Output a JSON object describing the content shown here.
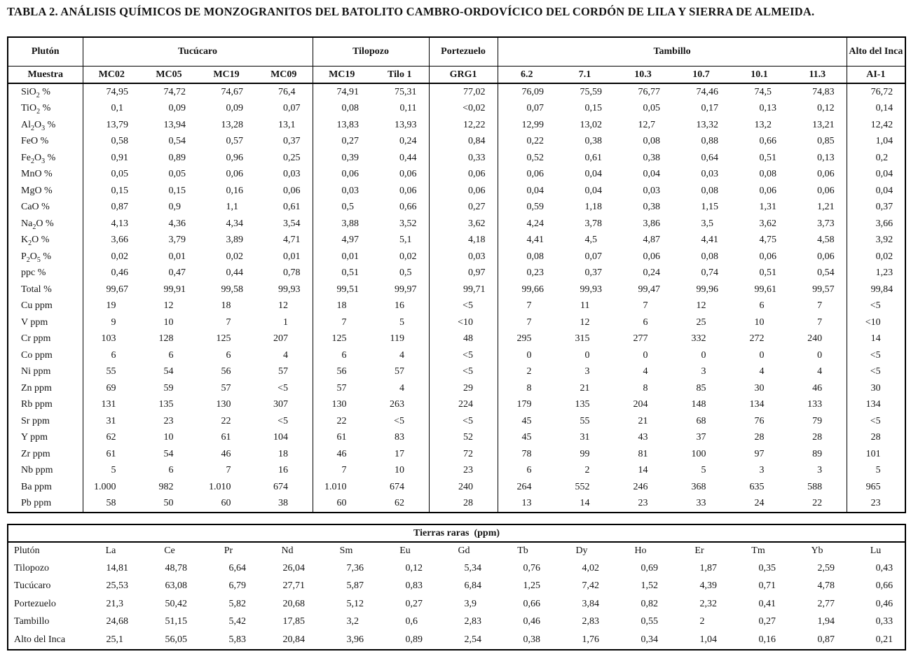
{
  "title": "TABLA 2. ANÁLISIS QUÍMICOS DE MONZOGRANITOS DEL BATOLITO CAMBRO-ORDOVÍCICO DEL CORDÓN DE LILA Y SIERRA DE ALMEIDA.",
  "main_table": {
    "pluton_header": "Plutón",
    "muestra_header": "Muestra",
    "groups": [
      {
        "label": "Tucúcaro",
        "span": 4
      },
      {
        "label": "Tilopozo",
        "span": 2
      },
      {
        "label": "Portezuelo",
        "span": 1
      },
      {
        "label": "Tambillo",
        "span": 6
      },
      {
        "label": "Alto del Inca",
        "span": 1
      }
    ],
    "samples": [
      "MC02",
      "MC05",
      "MC19",
      "MC09",
      "MC19",
      "Tilo 1",
      "GRG1",
      "6.2",
      "7.1",
      "10.3",
      "10.7",
      "10.1",
      "11.3",
      "AI-1"
    ],
    "rows": [
      {
        "label": "SiO₂ %",
        "values": [
          "74,95",
          "74,72",
          "74,67",
          "76,4",
          "74,91",
          "75,31",
          "77,02",
          "76,09",
          "75,59",
          "76,77",
          "74,46",
          "74,5",
          "74,83",
          "76,72"
        ]
      },
      {
        "label": "TiO₂ %",
        "values": [
          "0,1",
          "0,09",
          "0,09",
          "0,07",
          "0,08",
          "0,11",
          "<0,02",
          "0,07",
          "0,15",
          "0,05",
          "0,17",
          "0,13",
          "0,12",
          "0,14"
        ]
      },
      {
        "label": "Al₂O₃ %",
        "values": [
          "13,79",
          "13,94",
          "13,28",
          "13,1",
          "13,83",
          "13,93",
          "12,22",
          "12,99",
          "13,02",
          "12,7",
          "13,32",
          "13,2",
          "13,21",
          "12,42"
        ]
      },
      {
        "label": "FeO %",
        "values": [
          "0,58",
          "0,54",
          "0,57",
          "0,37",
          "0,27",
          "0,24",
          "0,84",
          "0,22",
          "0,38",
          "0,08",
          "0,88",
          "0,66",
          "0,85",
          "1,04"
        ]
      },
      {
        "label": "Fe₂O₃ %",
        "values": [
          "0,91",
          "0,89",
          "0,96",
          "0,25",
          "0,39",
          "0,44",
          "0,33",
          "0,52",
          "0,61",
          "0,38",
          "0,64",
          "0,51",
          "0,13",
          "0,2"
        ]
      },
      {
        "label": "MnO %",
        "values": [
          "0,05",
          "0,05",
          "0,06",
          "0,03",
          "0,06",
          "0,06",
          "0,06",
          "0,06",
          "0,04",
          "0,04",
          "0,03",
          "0,08",
          "0,06",
          "0,04"
        ]
      },
      {
        "label": "MgO %",
        "values": [
          "0,15",
          "0,15",
          "0,16",
          "0,06",
          "0,03",
          "0,06",
          "0,06",
          "0,04",
          "0,04",
          "0,03",
          "0,08",
          "0,06",
          "0,06",
          "0,04"
        ]
      },
      {
        "label": "CaO %",
        "values": [
          "0,87",
          "0,9",
          "1,1",
          "0,61",
          "0,5",
          "0,66",
          "0,27",
          "0,59",
          "1,18",
          "0,38",
          "1,15",
          "1,31",
          "1,21",
          "0,37"
        ]
      },
      {
        "label": "Na₂O %",
        "values": [
          "4,13",
          "4,36",
          "4,34",
          "3,54",
          "3,88",
          "3,52",
          "3,62",
          "4,24",
          "3,78",
          "3,86",
          "3,5",
          "3,62",
          "3,73",
          "3,66"
        ]
      },
      {
        "label": "K₂O %",
        "values": [
          "3,66",
          "3,79",
          "3,89",
          "4,71",
          "4,97",
          "5,1",
          "4,18",
          "4,41",
          "4,5",
          "4,87",
          "4,41",
          "4,75",
          "4,58",
          "3,92"
        ]
      },
      {
        "label": "P₂O₅ %",
        "values": [
          "0,02",
          "0,01",
          "0,02",
          "0,01",
          "0,01",
          "0,02",
          "0,03",
          "0,08",
          "0,07",
          "0,06",
          "0,08",
          "0,06",
          "0,06",
          "0,02"
        ]
      },
      {
        "label": "ppc %",
        "values": [
          "0,46",
          "0,47",
          "0,44",
          "0,78",
          "0,51",
          "0,5",
          "0,97",
          "0,23",
          "0,37",
          "0,24",
          "0,74",
          "0,51",
          "0,54",
          "1,23"
        ]
      },
      {
        "label": "Total %",
        "values": [
          "99,67",
          "99,91",
          "99,58",
          "99,93",
          "99,51",
          "99,97",
          "99,71",
          "99,66",
          "99,93",
          "99,47",
          "99,96",
          "99,61",
          "99,57",
          "99,84"
        ]
      },
      {
        "label": "Cu ppm",
        "values": [
          "19",
          "12",
          "18",
          "12",
          "18",
          "16",
          "<5",
          "7",
          "11",
          "7",
          "12",
          "6",
          "7",
          "<5"
        ]
      },
      {
        "label": "V ppm",
        "values": [
          "9",
          "10",
          "7",
          "1",
          "7",
          "5",
          "<10",
          "7",
          "12",
          "6",
          "25",
          "10",
          "7",
          "<10"
        ]
      },
      {
        "label": "Cr ppm",
        "values": [
          "103",
          "128",
          "125",
          "207",
          "125",
          "119",
          "48",
          "295",
          "315",
          "277",
          "332",
          "272",
          "240",
          "14"
        ]
      },
      {
        "label": "Co ppm",
        "values": [
          "6",
          "6",
          "6",
          "4",
          "6",
          "4",
          "<5",
          "0",
          "0",
          "0",
          "0",
          "0",
          "0",
          "<5"
        ]
      },
      {
        "label": "Ni ppm",
        "values": [
          "55",
          "54",
          "56",
          "57",
          "56",
          "57",
          "<5",
          "2",
          "3",
          "4",
          "3",
          "4",
          "4",
          "<5"
        ]
      },
      {
        "label": "Zn ppm",
        "values": [
          "69",
          "59",
          "57",
          "<5",
          "57",
          "4",
          "29",
          "8",
          "21",
          "8",
          "85",
          "30",
          "46",
          "30"
        ]
      },
      {
        "label": "Rb ppm",
        "values": [
          "131",
          "135",
          "130",
          "307",
          "130",
          "263",
          "224",
          "179",
          "135",
          "204",
          "148",
          "134",
          "133",
          "134"
        ]
      },
      {
        "label": "Sr ppm",
        "values": [
          "31",
          "23",
          "22",
          "<5",
          "22",
          "<5",
          "<5",
          "45",
          "55",
          "21",
          "68",
          "76",
          "79",
          "<5"
        ]
      },
      {
        "label": "Y ppm",
        "values": [
          "62",
          "10",
          "61",
          "104",
          "61",
          "83",
          "52",
          "45",
          "31",
          "43",
          "37",
          "28",
          "28",
          "28"
        ]
      },
      {
        "label": "Zr ppm",
        "values": [
          "61",
          "54",
          "46",
          "18",
          "46",
          "17",
          "72",
          "78",
          "99",
          "81",
          "100",
          "97",
          "89",
          "101"
        ]
      },
      {
        "label": "Nb ppm",
        "values": [
          "5",
          "6",
          "7",
          "16",
          "7",
          "10",
          "23",
          "6",
          "2",
          "14",
          "5",
          "3",
          "3",
          "5"
        ]
      },
      {
        "label": "Ba ppm",
        "values": [
          "1.000",
          "982",
          "1.010",
          "674",
          "1.010",
          "674",
          "240",
          "264",
          "552",
          "246",
          "368",
          "635",
          "588",
          "965"
        ]
      },
      {
        "label": "Pb ppm",
        "values": [
          "58",
          "50",
          "60",
          "38",
          "60",
          "62",
          "28",
          "13",
          "14",
          "23",
          "33",
          "24",
          "22",
          "23"
        ]
      }
    ]
  },
  "rare_earth_table": {
    "title": "Tierras raras  (ppm)",
    "pluton_header": "Plutón",
    "elements": [
      "La",
      "Ce",
      "Pr",
      "Nd",
      "Sm",
      "Eu",
      "Gd",
      "Tb",
      "Dy",
      "Ho",
      "Er",
      "Tm",
      "Yb",
      "Lu"
    ],
    "rows": [
      {
        "label": "Tilopozo",
        "values": [
          "14,81",
          "48,78",
          "6,64",
          "26,04",
          "7,36",
          "0,12",
          "5,34",
          "0,76",
          "4,02",
          "0,69",
          "1,87",
          "0,35",
          "2,59",
          "0,43"
        ]
      },
      {
        "label": "Tucúcaro",
        "values": [
          "25,53",
          "63,08",
          "6,79",
          "27,71",
          "5,87",
          "0,83",
          "6,84",
          "1,25",
          "7,42",
          "1,52",
          "4,39",
          "0,71",
          "4,78",
          "0,66"
        ]
      },
      {
        "label": "Portezuelo",
        "values": [
          "21,3",
          "50,42",
          "5,82",
          "20,68",
          "5,12",
          "0,27",
          "3,9",
          "0,66",
          "3,84",
          "0,82",
          "2,32",
          "0,41",
          "2,77",
          "0,46"
        ]
      },
      {
        "label": "Tambillo",
        "values": [
          "24,68",
          "51,15",
          "5,42",
          "17,85",
          "3,2",
          "0,6",
          "2,83",
          "0,46",
          "2,83",
          "0,55",
          "2",
          "0,27",
          "1,94",
          "0,33"
        ]
      },
      {
        "label": "Alto del Inca",
        "values": [
          "25,1",
          "56,05",
          "5,83",
          "20,84",
          "3,96",
          "0,89",
          "2,54",
          "0,38",
          "1,76",
          "0,34",
          "1,04",
          "0,16",
          "0,87",
          "0,21"
        ]
      }
    ]
  }
}
